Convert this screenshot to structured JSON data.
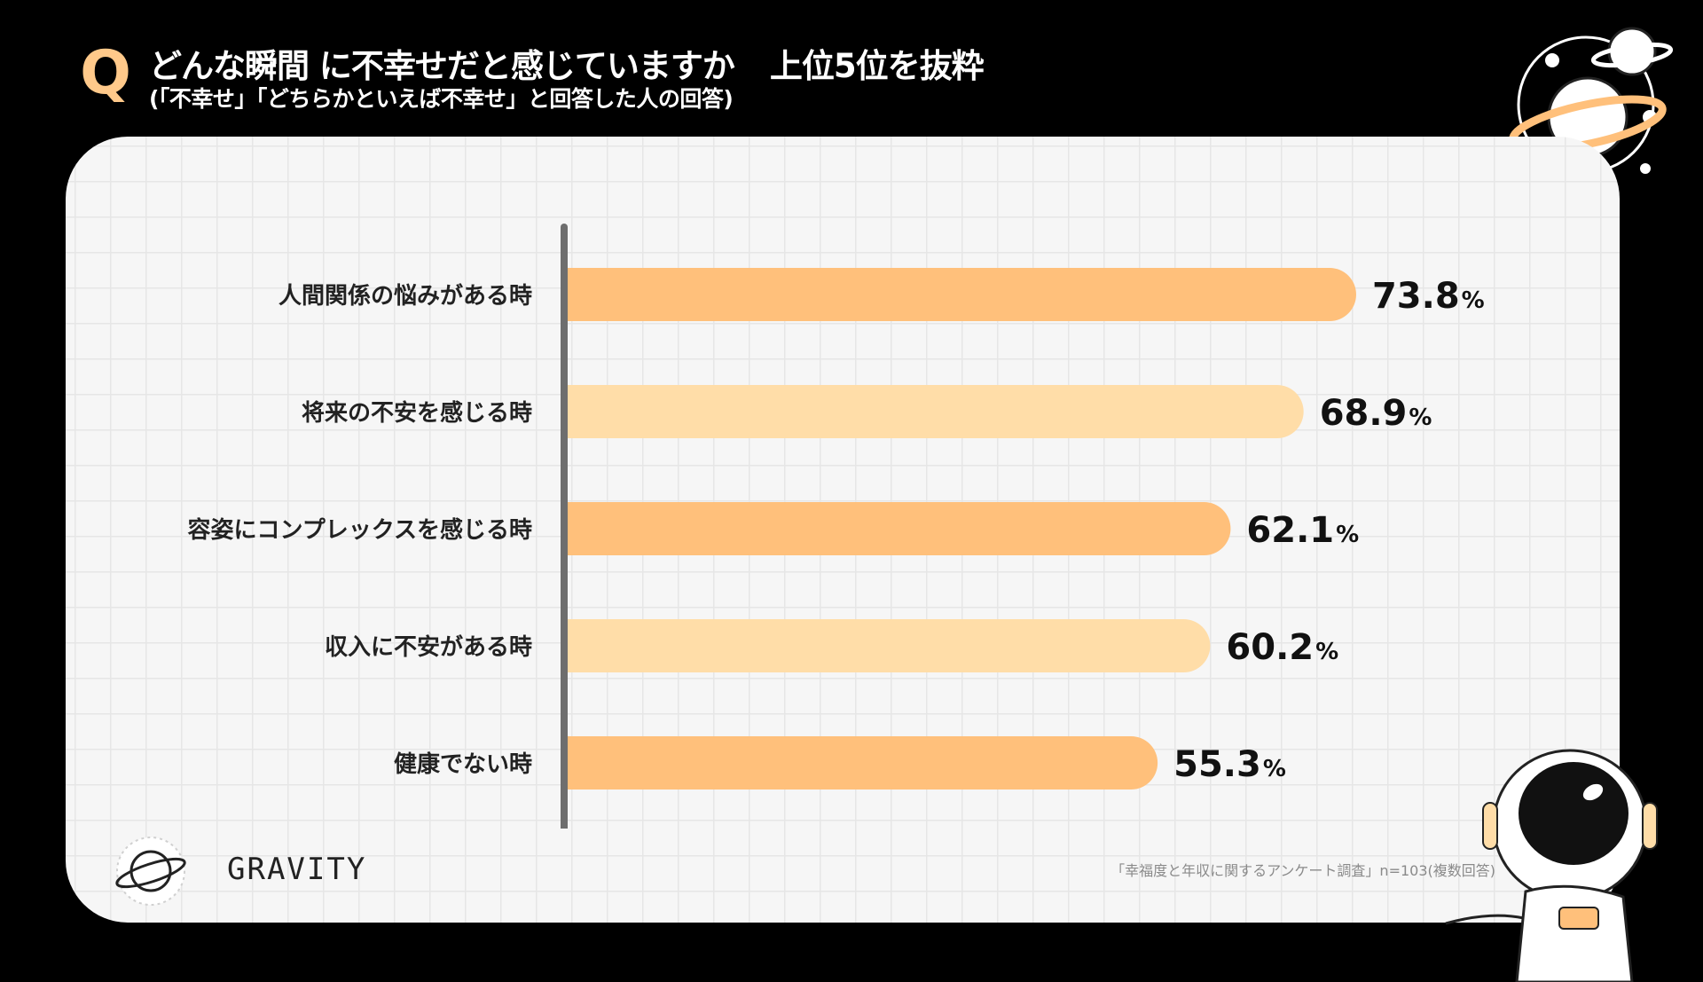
{
  "header": {
    "q_mark": "Q",
    "title": "どんな瞬間 に不幸せだと感じていますか",
    "title_rank": "上位5位を抜粋",
    "subtitle": "(「不幸せ」「どちらかといえば不幸せ」と回答した人の回答)"
  },
  "brand": {
    "name": "GRAVITY"
  },
  "source": "「幸福度と年収に関するアンケート調査」n=103(複数回答)",
  "colors": {
    "bar_dark": "#FFC07B",
    "bar_light": "#FFDDA8",
    "axis": "#6E6E6E",
    "panel": "#F6F6F6",
    "accent": "#FFC98A"
  },
  "chart_data": {
    "type": "bar",
    "orientation": "horizontal",
    "categories": [
      "人間関係の悩みがある時",
      "将来の不安を感じる時",
      "容姿にコンプレックスを感じる時",
      "収入に不安がある時",
      "健康でない時"
    ],
    "values": [
      73.8,
      68.9,
      62.1,
      60.2,
      55.3
    ],
    "value_labels": [
      "73.8",
      "68.9",
      "62.1",
      "60.2",
      "55.3"
    ],
    "unit": "%",
    "xlim": [
      0,
      100
    ],
    "grid": true,
    "legend": "none"
  }
}
